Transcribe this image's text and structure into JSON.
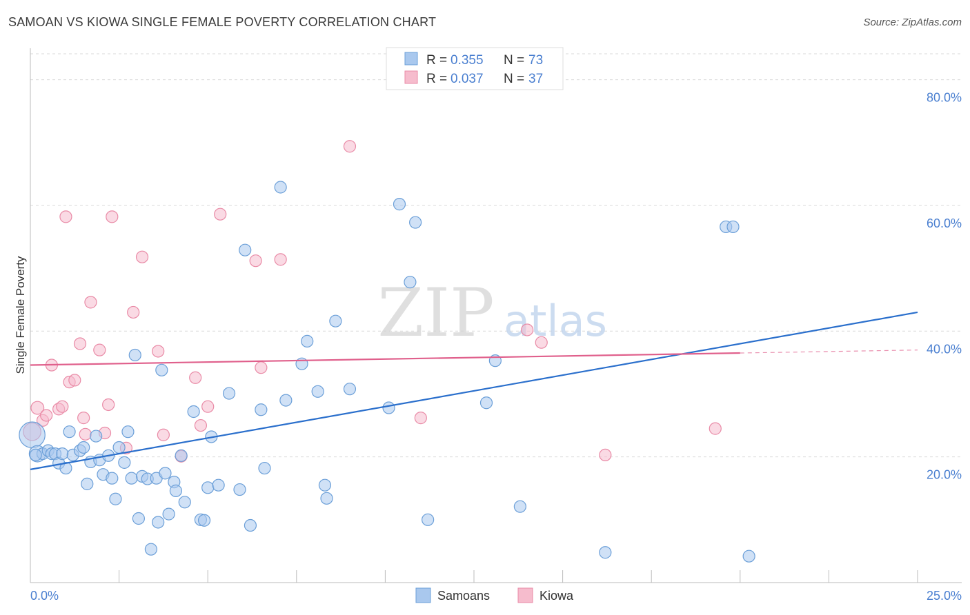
{
  "header": {
    "title": "SAMOAN VS KIOWA SINGLE FEMALE POVERTY CORRELATION CHART",
    "source": "Source: ZipAtlas.com"
  },
  "colors": {
    "samoans_fill": "#a9c8ee",
    "samoans_stroke": "#6b9fd8",
    "samoans_line": "#2a6fcc",
    "kiowa_fill": "#f6bccd",
    "kiowa_stroke": "#e98aa6",
    "kiowa_line": "#e0608c",
    "axis_value_text": "#4a7fd0",
    "grid": "#d9d9d9"
  },
  "stats_legend": [
    {
      "r_label": "R =",
      "r_value": "0.355",
      "n_label": "N =",
      "n_value": "73"
    },
    {
      "r_label": "R =",
      "r_value": "0.037",
      "n_label": "N =",
      "n_value": "37"
    }
  ],
  "watermark": {
    "zip": "ZIP",
    "atlas": "atlas"
  },
  "chart_data": {
    "type": "scatter",
    "title": "SAMOAN VS KIOWA SINGLE FEMALE POVERTY CORRELATION CHART",
    "ylabel": "Single Female Poverty",
    "xlabel": "",
    "xlim": [
      0,
      25
    ],
    "ylim": [
      0,
      85
    ],
    "x_tick_labels": [
      "0.0%",
      "25.0%"
    ],
    "y_tick_values": [
      20,
      40,
      60,
      80
    ],
    "y_tick_labels": [
      "20.0%",
      "40.0%",
      "60.0%",
      "80.0%"
    ],
    "grid": true,
    "legend_position": "bottom-center",
    "series": [
      {
        "name": "Samoans",
        "trend": {
          "x": [
            0,
            25
          ],
          "y": [
            18.0,
            43.0
          ],
          "dashed_from_x": null
        },
        "points": [
          [
            0.05,
            23.5,
            2.2
          ],
          [
            0.2,
            20.5,
            1.4
          ],
          [
            0.35,
            20.5,
            1.0
          ],
          [
            0.5,
            21.0,
            1.0
          ],
          [
            0.6,
            20.5,
            1.0
          ],
          [
            0.7,
            20.5,
            1.0
          ],
          [
            0.8,
            19.0,
            1.0
          ],
          [
            0.9,
            20.5,
            1.0
          ],
          [
            1.0,
            18.2,
            1.0
          ],
          [
            1.1,
            24.0,
            1.0
          ],
          [
            1.2,
            20.3,
            1.0
          ],
          [
            1.4,
            21.0,
            1.0
          ],
          [
            1.5,
            21.5,
            1.0
          ],
          [
            1.6,
            15.7,
            1.0
          ],
          [
            1.7,
            19.2,
            1.0
          ],
          [
            1.85,
            23.3,
            1.0
          ],
          [
            1.95,
            19.5,
            1.0
          ],
          [
            2.05,
            17.2,
            1.0
          ],
          [
            2.2,
            20.2,
            1.0
          ],
          [
            2.3,
            16.6,
            1.0
          ],
          [
            2.4,
            13.3,
            1.0
          ],
          [
            2.5,
            21.5,
            1.0
          ],
          [
            2.65,
            19.1,
            1.0
          ],
          [
            2.75,
            24.0,
            1.0
          ],
          [
            2.85,
            16.6,
            1.0
          ],
          [
            2.95,
            36.2,
            1.0
          ],
          [
            3.05,
            10.2,
            1.0
          ],
          [
            3.15,
            16.9,
            1.0
          ],
          [
            3.3,
            16.5,
            1.0
          ],
          [
            3.4,
            5.3,
            1.0
          ],
          [
            3.55,
            16.6,
            1.0
          ],
          [
            3.6,
            9.6,
            1.0
          ],
          [
            3.7,
            33.8,
            1.0
          ],
          [
            3.8,
            17.4,
            1.0
          ],
          [
            3.9,
            10.9,
            1.0
          ],
          [
            4.05,
            16.0,
            1.0
          ],
          [
            4.1,
            14.6,
            1.0
          ],
          [
            4.25,
            20.2,
            1.0
          ],
          [
            4.35,
            12.8,
            1.0
          ],
          [
            4.6,
            27.2,
            1.0
          ],
          [
            4.8,
            10.0,
            1.0
          ],
          [
            4.9,
            9.9,
            1.0
          ],
          [
            5.0,
            15.1,
            1.0
          ],
          [
            5.1,
            23.2,
            1.0
          ],
          [
            5.3,
            15.5,
            1.0
          ],
          [
            5.6,
            30.1,
            1.0
          ],
          [
            5.9,
            14.8,
            1.0
          ],
          [
            6.05,
            52.9,
            1.0
          ],
          [
            6.2,
            9.1,
            1.0
          ],
          [
            6.5,
            27.5,
            1.0
          ],
          [
            6.6,
            18.2,
            1.0
          ],
          [
            7.05,
            62.9,
            1.0
          ],
          [
            7.2,
            29.0,
            1.0
          ],
          [
            7.65,
            34.8,
            1.0
          ],
          [
            7.8,
            38.4,
            1.0
          ],
          [
            8.1,
            30.4,
            1.0
          ],
          [
            8.3,
            15.5,
            1.0
          ],
          [
            8.35,
            13.4,
            1.0
          ],
          [
            8.6,
            41.6,
            1.0
          ],
          [
            9.0,
            30.8,
            1.0
          ],
          [
            10.1,
            27.8,
            1.0
          ],
          [
            10.4,
            60.2,
            1.0
          ],
          [
            10.7,
            47.8,
            1.0
          ],
          [
            10.85,
            57.3,
            1.0
          ],
          [
            11.2,
            10.0,
            1.0
          ],
          [
            12.85,
            28.6,
            1.0
          ],
          [
            13.1,
            35.3,
            1.0
          ],
          [
            13.8,
            12.1,
            1.0
          ],
          [
            16.2,
            4.8,
            1.0
          ],
          [
            19.6,
            56.6,
            1.0
          ],
          [
            19.8,
            56.6,
            1.0
          ],
          [
            20.25,
            4.2,
            1.0
          ],
          [
            0.15,
            20.3,
            1.0
          ]
        ]
      },
      {
        "name": "Kiowa",
        "trend": {
          "x": [
            0,
            25
          ],
          "y": [
            34.6,
            37.0
          ],
          "dashed_from_x": 20.0
        },
        "points": [
          [
            0.05,
            24.0,
            1.5
          ],
          [
            0.2,
            27.8,
            1.1
          ],
          [
            0.35,
            25.8,
            1.0
          ],
          [
            0.45,
            26.6,
            1.0
          ],
          [
            0.6,
            34.6,
            1.0
          ],
          [
            0.8,
            27.6,
            1.0
          ],
          [
            0.9,
            28.0,
            1.0
          ],
          [
            1.0,
            58.2,
            1.0
          ],
          [
            1.1,
            31.9,
            1.0
          ],
          [
            1.25,
            32.2,
            1.0
          ],
          [
            1.4,
            38.0,
            1.0
          ],
          [
            1.5,
            26.2,
            1.0
          ],
          [
            1.55,
            23.6,
            1.0
          ],
          [
            1.7,
            44.6,
            1.0
          ],
          [
            1.95,
            37.0,
            1.0
          ],
          [
            2.1,
            23.8,
            1.0
          ],
          [
            2.2,
            28.3,
            1.0
          ],
          [
            2.3,
            58.2,
            1.0
          ],
          [
            2.7,
            21.4,
            1.0
          ],
          [
            2.9,
            43.0,
            1.0
          ],
          [
            3.15,
            51.8,
            1.0
          ],
          [
            3.6,
            36.8,
            1.0
          ],
          [
            3.75,
            23.5,
            1.0
          ],
          [
            4.25,
            20.1,
            1.0
          ],
          [
            4.65,
            32.6,
            1.0
          ],
          [
            4.8,
            25.0,
            1.0
          ],
          [
            5.0,
            28.0,
            1.0
          ],
          [
            5.35,
            58.6,
            1.0
          ],
          [
            6.35,
            51.2,
            1.0
          ],
          [
            6.5,
            34.2,
            1.0
          ],
          [
            7.05,
            51.4,
            1.0
          ],
          [
            9.0,
            69.4,
            1.0
          ],
          [
            11.0,
            26.2,
            1.0
          ],
          [
            14.0,
            40.2,
            1.0
          ],
          [
            14.4,
            38.2,
            1.0
          ],
          [
            16.2,
            20.3,
            1.0
          ],
          [
            19.3,
            24.5,
            1.0
          ]
        ]
      }
    ]
  }
}
